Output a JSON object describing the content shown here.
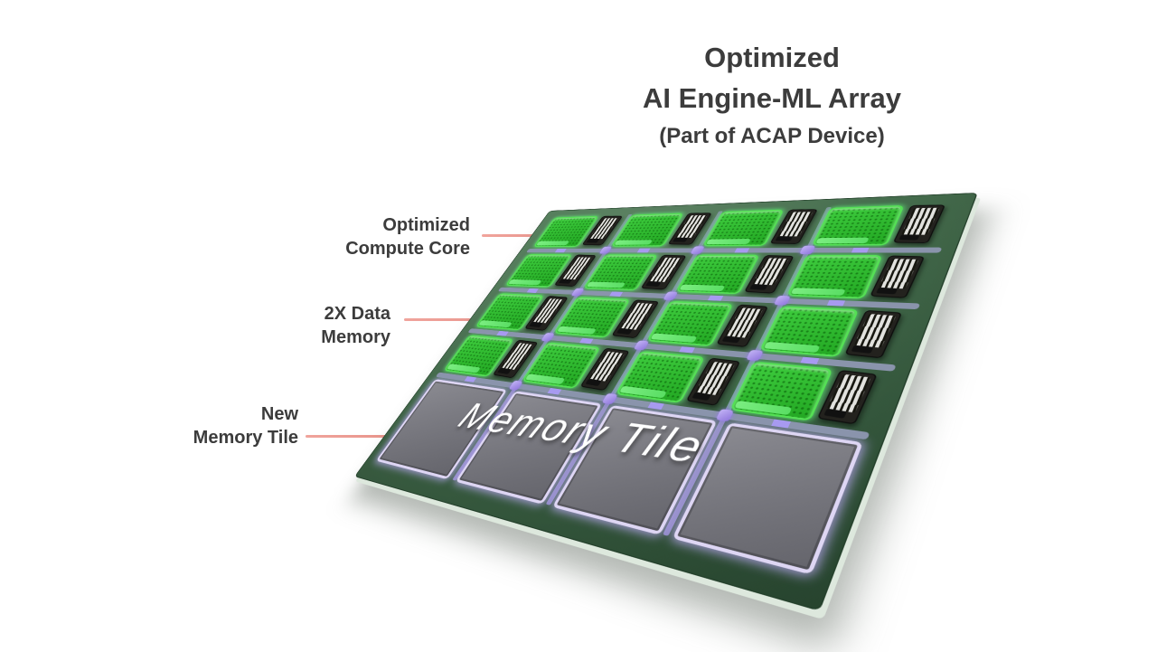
{
  "diagram_title": {
    "line1": "Optimized",
    "line2": "AI Engine-ML Array",
    "line3": "(Part of ACAP Device)"
  },
  "callouts": {
    "compute_core": {
      "line1": "Optimized",
      "line2": "Compute Core"
    },
    "data_memory": {
      "line1": "2X Data",
      "line2": "Memory"
    },
    "new_memory_tile": {
      "line1": "New",
      "line2": "Memory Tile"
    }
  },
  "board": {
    "overlay_label": "Memory Tile",
    "grid_rows": 4,
    "grid_cols": 4,
    "memory_tile_count": 4
  },
  "colors": {
    "text": "#3c3c3c",
    "callout_line": "#e9958c",
    "callout_line_tip": "#c5443b",
    "board_green": "#527c59",
    "board_green_dark": "#2f5238",
    "tile_green": "#23a823",
    "tile_green_glow": "#60f078",
    "memory_gray": "#65656c",
    "memory_border": "#ded6f4",
    "interconnect": "#8a94ac",
    "node_purple": "#8f76dc",
    "module_dark": "#23221e",
    "module_stripe_bg": "#e2e2de"
  }
}
